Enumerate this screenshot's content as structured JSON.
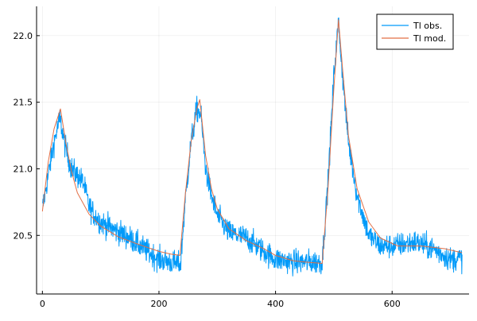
{
  "chart_data": {
    "type": "line",
    "title": "",
    "xlabel": "",
    "ylabel": "",
    "xlim": [
      -10,
      732
    ],
    "ylim": [
      20.06,
      22.22
    ],
    "x_ticks": [
      0,
      200,
      400,
      600
    ],
    "y_ticks": [
      20.5,
      21.0,
      21.5,
      22.0
    ],
    "x_tick_labels": [
      "0",
      "200",
      "400",
      "600"
    ],
    "y_tick_labels": [
      "20.5",
      "21.0",
      "21.5",
      "22.0"
    ],
    "grid": true,
    "legend_position": "top-right",
    "series": [
      {
        "name": "Tl obs.",
        "color": "#009af9",
        "noisy": true,
        "points": [
          [
            0,
            20.7
          ],
          [
            10,
            20.95
          ],
          [
            20,
            21.2
          ],
          [
            30,
            21.38
          ],
          [
            40,
            21.15
          ],
          [
            50,
            21.0
          ],
          [
            60,
            20.95
          ],
          [
            70,
            20.9
          ],
          [
            80,
            20.72
          ],
          [
            90,
            20.65
          ],
          [
            100,
            20.6
          ],
          [
            120,
            20.55
          ],
          [
            150,
            20.48
          ],
          [
            180,
            20.38
          ],
          [
            200,
            20.32
          ],
          [
            220,
            20.3
          ],
          [
            237,
            20.28
          ],
          [
            245,
            20.75
          ],
          [
            255,
            21.2
          ],
          [
            265,
            21.45
          ],
          [
            272,
            21.4
          ],
          [
            280,
            21.0
          ],
          [
            290,
            20.8
          ],
          [
            300,
            20.65
          ],
          [
            320,
            20.52
          ],
          [
            350,
            20.48
          ],
          [
            380,
            20.38
          ],
          [
            400,
            20.32
          ],
          [
            430,
            20.3
          ],
          [
            450,
            20.3
          ],
          [
            480,
            20.3
          ],
          [
            490,
            20.9
          ],
          [
            500,
            21.7
          ],
          [
            508,
            22.1
          ],
          [
            515,
            21.7
          ],
          [
            525,
            21.2
          ],
          [
            540,
            20.8
          ],
          [
            560,
            20.5
          ],
          [
            580,
            20.42
          ],
          [
            600,
            20.42
          ],
          [
            640,
            20.45
          ],
          [
            670,
            20.4
          ],
          [
            700,
            20.32
          ],
          [
            720,
            20.33
          ]
        ]
      },
      {
        "name": "Tl mod.",
        "color": "#e26f46",
        "noisy": false,
        "points": [
          [
            0,
            20.68
          ],
          [
            10,
            21.05
          ],
          [
            20,
            21.3
          ],
          [
            31,
            21.45
          ],
          [
            40,
            21.2
          ],
          [
            50,
            20.98
          ],
          [
            60,
            20.82
          ],
          [
            80,
            20.66
          ],
          [
            100,
            20.57
          ],
          [
            130,
            20.49
          ],
          [
            160,
            20.44
          ],
          [
            200,
            20.38
          ],
          [
            220,
            20.36
          ],
          [
            236,
            20.35
          ],
          [
            245,
            20.8
          ],
          [
            255,
            21.2
          ],
          [
            265,
            21.45
          ],
          [
            270,
            21.52
          ],
          [
            280,
            21.1
          ],
          [
            290,
            20.85
          ],
          [
            300,
            20.7
          ],
          [
            320,
            20.55
          ],
          [
            350,
            20.46
          ],
          [
            380,
            20.4
          ],
          [
            400,
            20.35
          ],
          [
            430,
            20.31
          ],
          [
            450,
            20.3
          ],
          [
            480,
            20.29
          ],
          [
            490,
            20.85
          ],
          [
            500,
            21.6
          ],
          [
            508,
            22.12
          ],
          [
            515,
            21.75
          ],
          [
            525,
            21.25
          ],
          [
            540,
            20.85
          ],
          [
            560,
            20.6
          ],
          [
            580,
            20.48
          ],
          [
            610,
            20.42
          ],
          [
            650,
            20.42
          ],
          [
            690,
            20.4
          ],
          [
            720,
            20.37
          ]
        ]
      }
    ]
  }
}
